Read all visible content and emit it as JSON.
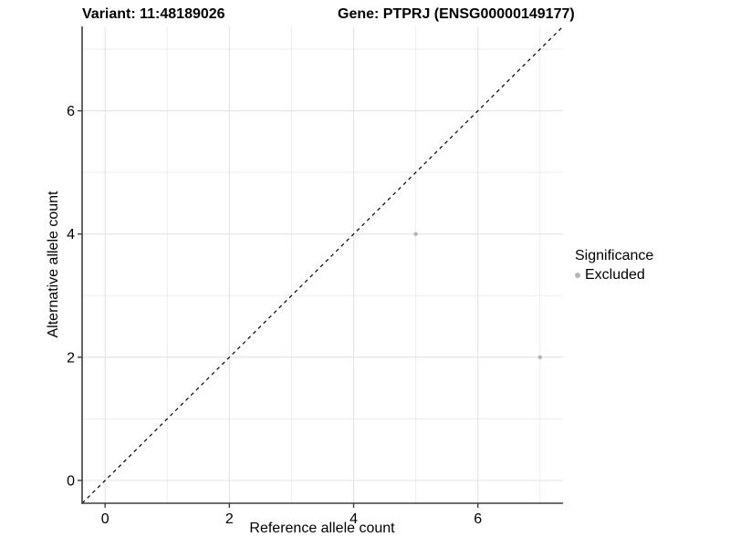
{
  "chart_data": {
    "type": "scatter",
    "titles": {
      "left": "Variant: 11:48189026",
      "right": "Gene: PTPRJ (ENSG00000149177)"
    },
    "xlabel": "Reference allele count",
    "ylabel": "Alternative allele count",
    "xlim": [
      -0.37,
      7.37
    ],
    "ylim": [
      -0.37,
      7.37
    ],
    "xticks": [
      0,
      2,
      4,
      6
    ],
    "yticks": [
      0,
      2,
      4,
      6
    ],
    "minor_xticks": [
      1,
      3,
      5,
      7
    ],
    "minor_yticks": [
      1,
      3,
      5,
      7
    ],
    "grid": true,
    "series": [
      {
        "name": "Excluded",
        "color": "#b5b5b5",
        "points": [
          {
            "x": 5,
            "y": 4
          },
          {
            "x": 7,
            "y": 2
          }
        ]
      }
    ],
    "reference_line": {
      "kind": "identity",
      "slope": 1,
      "intercept": 0,
      "style": "dashed",
      "color": "#000000"
    },
    "legend": {
      "title": "Significance",
      "position": "right",
      "items": [
        {
          "label": "Excluded",
          "color": "#b5b5b5"
        }
      ]
    },
    "style": {
      "grid_major_color": "#e3e3e3",
      "grid_minor_color": "#ededed",
      "axis_color": "#3c3c3c",
      "tick_color": "#3c3c3c",
      "background": "#ffffff"
    }
  }
}
